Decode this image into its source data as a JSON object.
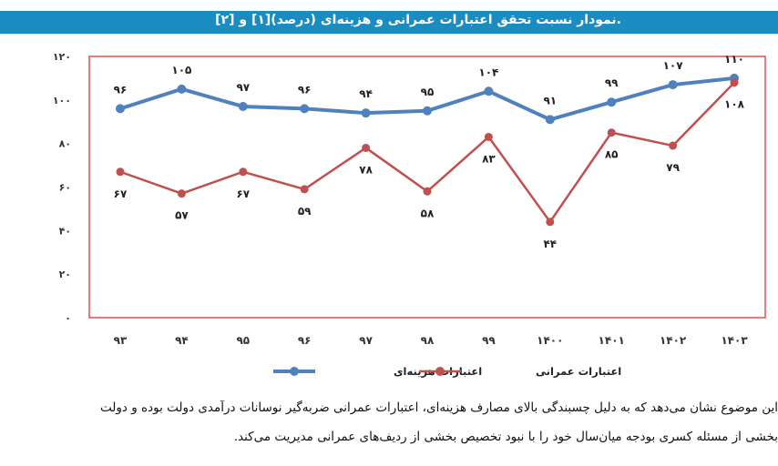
{
  "title": ".نمودار نسبت تحقق اعتبارات عمرانی و هزینه‌ای (درصد)[۱] و [۲]",
  "chart_data": {
    "type": "line",
    "title": "نمودار نسبت تحقق اعتبارات عمرانی و هزینه‌ای (درصد)",
    "categories": [
      "۹۳",
      "۹۴",
      "۹۵",
      "۹۶",
      "۹۷",
      "۹۸",
      "۹۹",
      "۱۴۰۰",
      "۱۴۰۱",
      "۱۴۰۲",
      "۱۴۰۳"
    ],
    "ylim": [
      0,
      120
    ],
    "yticks": [
      0,
      20,
      40,
      60,
      80,
      100,
      120
    ],
    "ytick_labels": [
      "۰",
      "۲۰",
      "۴۰",
      "۶۰",
      "۸۰",
      "۱۰۰",
      "۱۲۰"
    ],
    "grid": false,
    "legend": "bottom",
    "series": [
      {
        "name": "اعتبارات هزینه‌ای",
        "color": "#4f81bd",
        "values": [
          96,
          105,
          97,
          96,
          94,
          95,
          104,
          91,
          99,
          107,
          110
        ],
        "labels": [
          "۹۶",
          "۱۰۵",
          "۹۷",
          "۹۶",
          "۹۴",
          "۹۵",
          "۱۰۴",
          "۹۱",
          "۹۹",
          "۱۰۷",
          "۱۱۰"
        ]
      },
      {
        "name": "اعتبارات عمرانی",
        "color": "#c0504d",
        "values": [
          67,
          57,
          67,
          59,
          78,
          58,
          83,
          44,
          85,
          79,
          108
        ],
        "labels": [
          "۶۷",
          "۵۷",
          "۶۷",
          "۵۹",
          "۷۸",
          "۵۸",
          "۸۳",
          "۴۴",
          "۸۵",
          "۷۹",
          "۱۰۸"
        ]
      }
    ]
  },
  "caption": {
    "line1": "این موضوع نشان می‌دهد که به دلیل چسبندگی بالای مصارف هزینه‌ای، اعتبارات عمرانی ضربه‌گیر نوسانات درآمدی دولت بوده و دولت",
    "line2": "بخشی از مسئله کسری بودجه میان‌سال خود را با نبود تخصیص بخشی از ردیف‌های عمرانی مدیریت می‌کند."
  }
}
